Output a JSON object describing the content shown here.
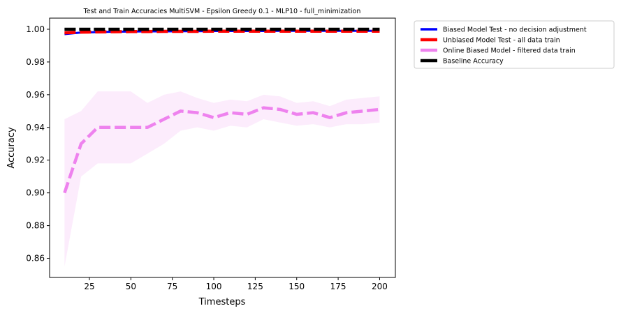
{
  "chart_data": {
    "type": "line",
    "title": "Test and Train Accuracies MultiSVM - Epsilon Greedy 0.1 - MLP10 - full_minimization",
    "xlabel": "Timesteps",
    "ylabel": "Accuracy",
    "xlim": [
      1,
      209.5
    ],
    "ylim": [
      0.8483,
      1.0068
    ],
    "xticks": [
      25,
      50,
      75,
      100,
      125,
      150,
      175,
      200
    ],
    "xtick_labels": [
      "25",
      "50",
      "75",
      "100",
      "125",
      "150",
      "175",
      "200"
    ],
    "yticks": [
      0.86,
      0.88,
      0.9,
      0.92,
      0.94,
      0.96,
      0.98,
      1.0
    ],
    "ytick_labels": [
      "0.86",
      "0.88",
      "0.90",
      "0.92",
      "0.94",
      "0.96",
      "0.98",
      "1.00"
    ],
    "grid": false,
    "legend_position": "outside-upper-right",
    "x": [
      10,
      20,
      30,
      40,
      50,
      60,
      70,
      80,
      90,
      100,
      110,
      120,
      130,
      140,
      150,
      160,
      170,
      180,
      190,
      200
    ],
    "series": [
      {
        "name": "Biased Model Test - no decision adjustment",
        "color": "#0000ff",
        "style": "solid",
        "values": [
          0.997,
          0.998,
          0.9983,
          0.9985,
          0.9986,
          0.9987,
          0.9987,
          0.9988,
          0.9988,
          0.9989,
          0.9989,
          0.9989,
          0.9989,
          0.999,
          0.999,
          0.999,
          0.999,
          0.999,
          0.999,
          0.999
        ]
      },
      {
        "name": "Unbiased Model Test - all data train",
        "color": "#ff0000",
        "style": "dashed",
        "values": [
          0.9978,
          0.9982,
          0.9984,
          0.9985,
          0.9986,
          0.9986,
          0.9987,
          0.9987,
          0.9987,
          0.9988,
          0.9988,
          0.9988,
          0.9988,
          0.9988,
          0.9988,
          0.9988,
          0.9988,
          0.9988,
          0.9988,
          0.9988
        ]
      },
      {
        "name": "Online Biased Model - filtered data train",
        "color": "#ee82ee",
        "style": "dashed",
        "values": [
          0.9,
          0.93,
          0.94,
          0.94,
          0.94,
          0.94,
          0.945,
          0.95,
          0.949,
          0.946,
          0.949,
          0.948,
          0.952,
          0.951,
          0.948,
          0.949,
          0.946,
          0.949,
          0.95,
          0.951
        ],
        "band_lower": [
          0.855,
          0.91,
          0.918,
          0.918,
          0.918,
          0.924,
          0.93,
          0.938,
          0.94,
          0.938,
          0.941,
          0.94,
          0.945,
          0.943,
          0.941,
          0.942,
          0.94,
          0.942,
          0.942,
          0.943
        ],
        "band_upper": [
          0.945,
          0.95,
          0.962,
          0.962,
          0.962,
          0.955,
          0.96,
          0.962,
          0.958,
          0.955,
          0.957,
          0.956,
          0.96,
          0.959,
          0.955,
          0.956,
          0.953,
          0.957,
          0.958,
          0.959
        ]
      },
      {
        "name": "Baseline Accuracy",
        "color": "#000000",
        "style": "dashed",
        "values": [
          1.0,
          1.0,
          1.0,
          1.0,
          1.0,
          1.0,
          1.0,
          1.0,
          1.0,
          1.0,
          1.0,
          1.0,
          1.0,
          1.0,
          1.0,
          1.0,
          1.0,
          1.0,
          1.0,
          1.0
        ]
      }
    ]
  }
}
